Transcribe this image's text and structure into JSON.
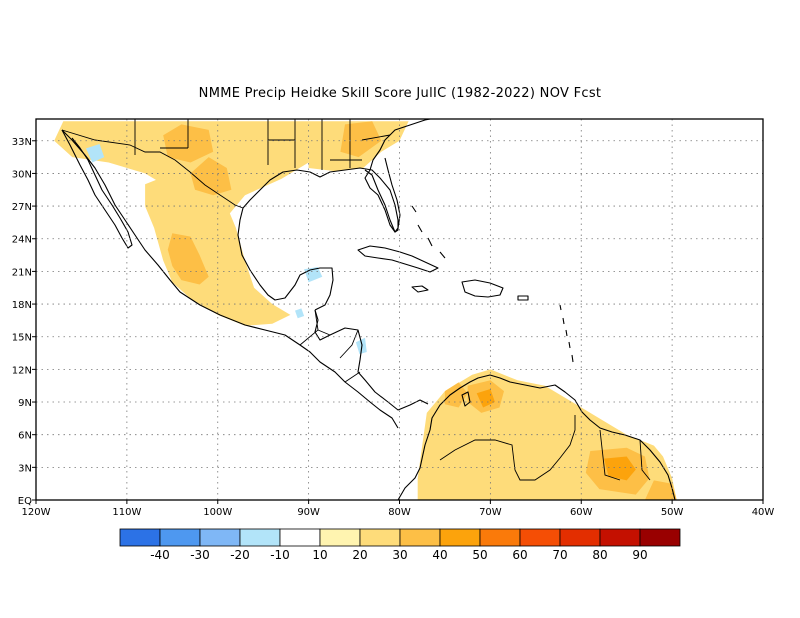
{
  "title": "NMME Precip Heidke Skill Score JulIC (1982-2022) NOV Fcst",
  "map": {
    "lon_range": [
      -120,
      -40
    ],
    "lat_range": [
      0,
      35
    ],
    "grid": true,
    "x_ticks": [
      {
        "lon": -120,
        "label": "120W"
      },
      {
        "lon": -110,
        "label": "110W"
      },
      {
        "lon": -100,
        "label": "100W"
      },
      {
        "lon": -90,
        "label": "90W"
      },
      {
        "lon": -80,
        "label": "80W"
      },
      {
        "lon": -70,
        "label": "70W"
      },
      {
        "lon": -60,
        "label": "60W"
      },
      {
        "lon": -50,
        "label": "50W"
      },
      {
        "lon": -40,
        "label": "40W"
      }
    ],
    "y_ticks": [
      {
        "lat": 0,
        "label": "EQ"
      },
      {
        "lat": 3,
        "label": "3N"
      },
      {
        "lat": 6,
        "label": "6N"
      },
      {
        "lat": 9,
        "label": "9N"
      },
      {
        "lat": 12,
        "label": "12N"
      },
      {
        "lat": 15,
        "label": "15N"
      },
      {
        "lat": 18,
        "label": "18N"
      },
      {
        "lat": 21,
        "label": "21N"
      },
      {
        "lat": 24,
        "label": "24N"
      },
      {
        "lat": 27,
        "label": "27N"
      },
      {
        "lat": 30,
        "label": "30N"
      },
      {
        "lat": 33,
        "label": "33N"
      }
    ]
  },
  "colorbar": {
    "colors": [
      "#2c72e6",
      "#4e98f0",
      "#7fb7f6",
      "#b2e4f9",
      "#ffffff",
      "#fff4b0",
      "#fedc7a",
      "#fdbf46",
      "#fca30c",
      "#fa7a0a",
      "#f54e05",
      "#e32e00",
      "#c41000",
      "#990000"
    ],
    "labels": [
      "-40",
      "-30",
      "-20",
      "-10",
      "10",
      "20",
      "30",
      "40",
      "50",
      "60",
      "70",
      "80",
      "90"
    ]
  },
  "field": {
    "blobs": [
      {
        "name": "us-southwest",
        "level": 20,
        "points": [
          [
            -117,
            34.8
          ],
          [
            -110,
            34.8
          ],
          [
            -104,
            34.8
          ],
          [
            -98,
            34.8
          ],
          [
            -93,
            34.8
          ],
          [
            -90,
            34.8
          ],
          [
            -90,
            31
          ],
          [
            -93,
            29.5
          ],
          [
            -97,
            28
          ],
          [
            -99,
            26
          ],
          [
            -102,
            26
          ],
          [
            -104,
            28
          ],
          [
            -108,
            30
          ],
          [
            -112,
            31
          ],
          [
            -116,
            31.5
          ],
          [
            -118,
            33
          ]
        ]
      },
      {
        "name": "southeast-us",
        "level": 20,
        "points": [
          [
            -90,
            34.8
          ],
          [
            -84,
            34.8
          ],
          [
            -79,
            34.8
          ],
          [
            -80,
            33
          ],
          [
            -82,
            32
          ],
          [
            -84,
            30.5
          ],
          [
            -87,
            30.2
          ],
          [
            -90,
            30.5
          ]
        ]
      },
      {
        "name": "mexico-west",
        "level": 20,
        "points": [
          [
            -108,
            29
          ],
          [
            -105,
            30
          ],
          [
            -102,
            28
          ],
          [
            -99,
            27
          ],
          [
            -98,
            25
          ],
          [
            -97,
            22
          ],
          [
            -96,
            19.5
          ],
          [
            -94,
            18
          ],
          [
            -92,
            17
          ],
          [
            -94,
            16.2
          ],
          [
            -97,
            16
          ],
          [
            -100,
            17
          ],
          [
            -103,
            18.5
          ],
          [
            -105,
            20
          ],
          [
            -106,
            22
          ],
          [
            -107,
            25
          ],
          [
            -108,
            27
          ]
        ]
      },
      {
        "name": "mexico-core",
        "level": 30,
        "points": [
          [
            -105,
            24.5
          ],
          [
            -103,
            24.2
          ],
          [
            -102,
            22.5
          ],
          [
            -101,
            20.5
          ],
          [
            -102,
            19.8
          ],
          [
            -104,
            20.2
          ],
          [
            -105,
            21.5
          ],
          [
            -105.5,
            23
          ]
        ]
      },
      {
        "name": "mexico-center",
        "level": 30,
        "points": [
          [
            -103,
            30
          ],
          [
            -101,
            31.5
          ],
          [
            -99,
            30.5
          ],
          [
            -98.5,
            28.5
          ],
          [
            -100.5,
            28
          ],
          [
            -102.5,
            28.5
          ]
        ]
      },
      {
        "name": "us-south-core",
        "level": 30,
        "points": [
          [
            -106,
            33.5
          ],
          [
            -104,
            34.5
          ],
          [
            -101,
            34
          ],
          [
            -100.5,
            32
          ],
          [
            -103,
            31
          ],
          [
            -105.5,
            31.5
          ]
        ]
      },
      {
        "name": "florida-north",
        "level": 30,
        "points": [
          [
            -86,
            34.5
          ],
          [
            -83,
            34.8
          ],
          [
            -82,
            33
          ],
          [
            -84.5,
            31.5
          ],
          [
            -86.5,
            32
          ]
        ]
      },
      {
        "name": "south-america",
        "level": 20,
        "points": [
          [
            -77,
            8
          ],
          [
            -75,
            10
          ],
          [
            -72,
            11.5
          ],
          [
            -70,
            12
          ],
          [
            -67,
            11
          ],
          [
            -64,
            10.5
          ],
          [
            -61,
            9
          ],
          [
            -58,
            7.5
          ],
          [
            -55,
            6
          ],
          [
            -52,
            5
          ],
          [
            -51,
            4
          ],
          [
            -50,
            2
          ],
          [
            -49.5,
            0
          ],
          [
            -78,
            0
          ],
          [
            -78,
            2
          ],
          [
            -77.5,
            5
          ]
        ]
      },
      {
        "name": "venezuela-core",
        "level": 30,
        "points": [
          [
            -72.5,
            10.5
          ],
          [
            -70,
            11
          ],
          [
            -68.5,
            10
          ],
          [
            -69,
            8.5
          ],
          [
            -71,
            8
          ],
          [
            -72.5,
            9
          ]
        ]
      },
      {
        "name": "venezuela-orange",
        "level": 40,
        "points": [
          [
            -71.5,
            9.8
          ],
          [
            -70,
            10.2
          ],
          [
            -69.5,
            9
          ],
          [
            -70.8,
            8.5
          ]
        ]
      },
      {
        "name": "colombia-core",
        "level": 30,
        "points": [
          [
            -75,
            10
          ],
          [
            -73.5,
            10.8
          ],
          [
            -72.5,
            9.8
          ],
          [
            -73.5,
            8.5
          ],
          [
            -75,
            8.8
          ]
        ]
      },
      {
        "name": "guyana-core",
        "level": 30,
        "points": [
          [
            -59,
            4.5
          ],
          [
            -55,
            4.8
          ],
          [
            -53,
            4
          ],
          [
            -52.5,
            2
          ],
          [
            -54,
            0.5
          ],
          [
            -58,
            1
          ],
          [
            -59.5,
            2.5
          ]
        ]
      },
      {
        "name": "guyana-orange",
        "level": 40,
        "points": [
          [
            -57.5,
            3.8
          ],
          [
            -55,
            4
          ],
          [
            -54,
            2.8
          ],
          [
            -55,
            1.8
          ],
          [
            -57,
            2.2
          ]
        ]
      },
      {
        "name": "brazil-east",
        "level": 30,
        "points": [
          [
            -52,
            1.8
          ],
          [
            -50,
            1.5
          ],
          [
            -49.5,
            0
          ],
          [
            -53,
            0
          ]
        ]
      }
    ],
    "patches": [
      {
        "name": "baja-negative",
        "level": -10,
        "points": [
          [
            -114.5,
            32.3
          ],
          [
            -113,
            32.7
          ],
          [
            -112.5,
            31.5
          ],
          [
            -113.8,
            31
          ]
        ]
      },
      {
        "name": "yucatan-negative",
        "level": -10,
        "points": [
          [
            -90.5,
            21.2
          ],
          [
            -89,
            21.4
          ],
          [
            -88.5,
            20.5
          ],
          [
            -90,
            20
          ]
        ]
      },
      {
        "name": "guatemala-negative",
        "level": -10,
        "points": [
          [
            -91.5,
            17.4
          ],
          [
            -90.8,
            17.6
          ],
          [
            -90.5,
            16.9
          ],
          [
            -91.2,
            16.7
          ]
        ]
      },
      {
        "name": "honduras-negative",
        "level": -10,
        "points": [
          [
            -84.8,
            14.5
          ],
          [
            -83.8,
            14.9
          ],
          [
            -83.6,
            13.6
          ],
          [
            -84.4,
            13.4
          ]
        ]
      }
    ]
  }
}
